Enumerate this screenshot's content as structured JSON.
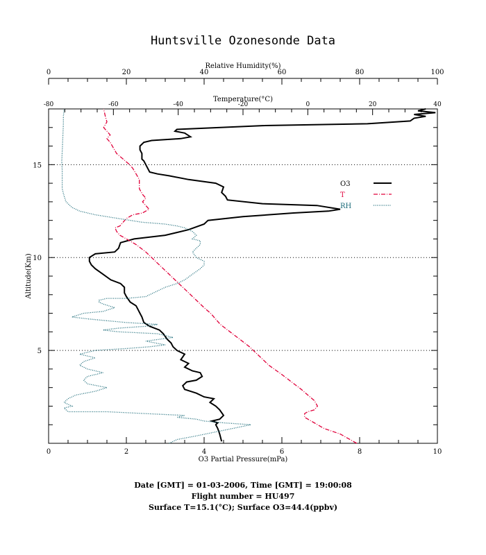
{
  "chart_data": {
    "type": "line",
    "title": "Huntsville Ozonesonde Data",
    "xlabel_bottom": "O3 Partial Pressure(mPa)",
    "xlabel_top_outer": "Relative Humidity(%)",
    "xlabel_top_inner": "Temperature(°C)",
    "ylabel": "Altitude(Km)",
    "xlim_ozone": [
      0,
      10
    ],
    "xlim_rh": [
      0,
      100
    ],
    "xlim_temp": [
      -80,
      40
    ],
    "ylim": [
      0,
      18
    ],
    "ozone_ticks": [
      "0",
      "2",
      "4",
      "6",
      "8",
      "10"
    ],
    "rh_ticks": [
      "0",
      "20",
      "40",
      "60",
      "80",
      "100"
    ],
    "temp_ticks": [
      "-80",
      "-60",
      "-40",
      "-20",
      "0",
      "20",
      "40"
    ],
    "alt_ticks": [
      "5",
      "10",
      "15"
    ],
    "dotted_grid_altitudes": [
      5,
      10,
      15
    ],
    "legend_position": "right",
    "series": [
      {
        "name": "O3",
        "axis": "ozone",
        "color": "#000000",
        "style": "solid",
        "points": [
          [
            4.45,
            0.1
          ],
          [
            4.4,
            0.5
          ],
          [
            4.35,
            0.8
          ],
          [
            4.3,
            1.0
          ],
          [
            4.35,
            1.1
          ],
          [
            4.2,
            1.2
          ],
          [
            4.4,
            1.3
          ],
          [
            4.5,
            1.5
          ],
          [
            4.4,
            1.8
          ],
          [
            4.3,
            2.0
          ],
          [
            4.15,
            2.2
          ],
          [
            4.25,
            2.4
          ],
          [
            4.0,
            2.5
          ],
          [
            3.8,
            2.7
          ],
          [
            3.5,
            2.9
          ],
          [
            3.45,
            3.1
          ],
          [
            3.5,
            3.2
          ],
          [
            3.55,
            3.3
          ],
          [
            3.8,
            3.4
          ],
          [
            3.95,
            3.6
          ],
          [
            3.9,
            3.8
          ],
          [
            3.7,
            3.9
          ],
          [
            3.5,
            4.1
          ],
          [
            3.6,
            4.3
          ],
          [
            3.4,
            4.5
          ],
          [
            3.5,
            4.8
          ],
          [
            3.3,
            5.0
          ],
          [
            3.2,
            5.2
          ],
          [
            3.15,
            5.4
          ],
          [
            3.05,
            5.6
          ],
          [
            2.95,
            5.9
          ],
          [
            2.85,
            6.1
          ],
          [
            2.6,
            6.3
          ],
          [
            2.45,
            6.5
          ],
          [
            2.4,
            6.8
          ],
          [
            2.35,
            7.0
          ],
          [
            2.3,
            7.2
          ],
          [
            2.25,
            7.4
          ],
          [
            2.1,
            7.6
          ],
          [
            2.0,
            7.9
          ],
          [
            1.95,
            8.1
          ],
          [
            1.95,
            8.4
          ],
          [
            1.85,
            8.6
          ],
          [
            1.6,
            8.8
          ],
          [
            1.4,
            9.1
          ],
          [
            1.2,
            9.4
          ],
          [
            1.1,
            9.6
          ],
          [
            1.05,
            9.8
          ],
          [
            1.05,
            10.0
          ],
          [
            1.2,
            10.2
          ],
          [
            1.7,
            10.3
          ],
          [
            1.8,
            10.5
          ],
          [
            1.85,
            10.8
          ],
          [
            2.2,
            11.0
          ],
          [
            3.0,
            11.2
          ],
          [
            3.6,
            11.5
          ],
          [
            4.0,
            11.8
          ],
          [
            4.1,
            12.0
          ],
          [
            5.0,
            12.2
          ],
          [
            6.3,
            12.4
          ],
          [
            7.2,
            12.5
          ],
          [
            7.5,
            12.6
          ],
          [
            6.9,
            12.8
          ],
          [
            5.5,
            12.9
          ],
          [
            4.6,
            13.1
          ],
          [
            4.55,
            13.3
          ],
          [
            4.45,
            13.5
          ],
          [
            4.5,
            13.8
          ],
          [
            4.3,
            14.0
          ],
          [
            3.6,
            14.2
          ],
          [
            3.1,
            14.4
          ],
          [
            2.8,
            14.5
          ],
          [
            2.6,
            14.6
          ],
          [
            2.55,
            14.8
          ],
          [
            2.5,
            15.0
          ],
          [
            2.45,
            15.2
          ],
          [
            2.4,
            15.3
          ],
          [
            2.4,
            15.6
          ],
          [
            2.35,
            15.8
          ],
          [
            2.35,
            16.0
          ],
          [
            2.45,
            16.2
          ],
          [
            2.65,
            16.3
          ],
          [
            3.4,
            16.4
          ],
          [
            3.65,
            16.5
          ],
          [
            3.5,
            16.7
          ],
          [
            3.25,
            16.8
          ],
          [
            3.3,
            16.9
          ],
          [
            5.5,
            17.1
          ],
          [
            8.2,
            17.2
          ],
          [
            9.3,
            17.35
          ],
          [
            9.4,
            17.5
          ],
          [
            9.7,
            17.6
          ],
          [
            9.4,
            17.7
          ],
          [
            9.95,
            17.8
          ],
          [
            9.5,
            17.9
          ],
          [
            9.7,
            18.0
          ]
        ]
      },
      {
        "name": "T",
        "axis": "temp",
        "color": "#e0003a",
        "style": "dashdot",
        "points": [
          [
            15.1,
            0.0
          ],
          [
            10,
            0.5
          ],
          [
            5,
            0.8
          ],
          [
            2,
            1.1
          ],
          [
            -1,
            1.4
          ],
          [
            -1,
            1.6
          ],
          [
            0,
            1.7
          ],
          [
            2,
            1.8
          ],
          [
            3,
            2.0
          ],
          [
            2,
            2.3
          ],
          [
            0,
            2.6
          ],
          [
            -2,
            2.9
          ],
          [
            -5,
            3.3
          ],
          [
            -8,
            3.7
          ],
          [
            -12,
            4.2
          ],
          [
            -15,
            4.7
          ],
          [
            -18,
            5.2
          ],
          [
            -21,
            5.6
          ],
          [
            -24,
            6.0
          ],
          [
            -27,
            6.4
          ],
          [
            -29,
            6.8
          ],
          [
            -29.5,
            6.9
          ],
          [
            -30,
            7.0
          ],
          [
            -32,
            7.3
          ],
          [
            -35,
            7.8
          ],
          [
            -38,
            8.3
          ],
          [
            -41,
            8.8
          ],
          [
            -44,
            9.3
          ],
          [
            -47,
            9.8
          ],
          [
            -50,
            10.3
          ],
          [
            -53,
            10.7
          ],
          [
            -56,
            11.0
          ],
          [
            -58,
            11.2
          ],
          [
            -59,
            11.4
          ],
          [
            -59.5,
            11.6
          ],
          [
            -58,
            11.7
          ],
          [
            -57,
            11.9
          ],
          [
            -56,
            12.1
          ],
          [
            -54,
            12.3
          ],
          [
            -51,
            12.4
          ],
          [
            -49,
            12.6
          ],
          [
            -50,
            12.8
          ],
          [
            -51,
            13.0
          ],
          [
            -50,
            13.2
          ],
          [
            -51,
            13.4
          ],
          [
            -52,
            13.7
          ],
          [
            -52,
            14.0
          ],
          [
            -52,
            14.2
          ],
          [
            -53,
            14.5
          ],
          [
            -54,
            14.8
          ],
          [
            -55,
            15.0
          ],
          [
            -57,
            15.3
          ],
          [
            -59,
            15.6
          ],
          [
            -60,
            15.9
          ],
          [
            -61,
            16.2
          ],
          [
            -62,
            16.4
          ],
          [
            -61,
            16.6
          ],
          [
            -62,
            16.8
          ],
          [
            -63,
            17.0
          ],
          [
            -62,
            17.3
          ],
          [
            -62.5,
            17.6
          ],
          [
            -63,
            18.0
          ]
        ]
      },
      {
        "name": "RH",
        "axis": "rh",
        "color": "#1a6a78",
        "style": "dotted",
        "points": [
          [
            31,
            0.0
          ],
          [
            33,
            0.2
          ],
          [
            38,
            0.4
          ],
          [
            45,
            0.7
          ],
          [
            52,
            1.0
          ],
          [
            45,
            1.1
          ],
          [
            40,
            1.2
          ],
          [
            38,
            1.3
          ],
          [
            33,
            1.4
          ],
          [
            35,
            1.5
          ],
          [
            25,
            1.6
          ],
          [
            15,
            1.7
          ],
          [
            5,
            1.7
          ],
          [
            4,
            1.9
          ],
          [
            6,
            2.0
          ],
          [
            4,
            2.2
          ],
          [
            5,
            2.4
          ],
          [
            7,
            2.6
          ],
          [
            12,
            2.8
          ],
          [
            15,
            3.0
          ],
          [
            10,
            3.2
          ],
          [
            9,
            3.4
          ],
          [
            10,
            3.6
          ],
          [
            14,
            3.8
          ],
          [
            10,
            4.0
          ],
          [
            8,
            4.2
          ],
          [
            9,
            4.4
          ],
          [
            12,
            4.6
          ],
          [
            8,
            4.8
          ],
          [
            12,
            5.0
          ],
          [
            20,
            5.1
          ],
          [
            26,
            5.2
          ],
          [
            30,
            5.3
          ],
          [
            25,
            5.5
          ],
          [
            32,
            5.7
          ],
          [
            28,
            5.9
          ],
          [
            18,
            6.0
          ],
          [
            14,
            6.1
          ],
          [
            18,
            6.2
          ],
          [
            25,
            6.3
          ],
          [
            28,
            6.4
          ],
          [
            20,
            6.5
          ],
          [
            15,
            6.6
          ],
          [
            10,
            6.7
          ],
          [
            6,
            6.8
          ],
          [
            9,
            7.0
          ],
          [
            14,
            7.1
          ],
          [
            17,
            7.3
          ],
          [
            14,
            7.5
          ],
          [
            13,
            7.6
          ],
          [
            13,
            7.7
          ],
          [
            15,
            7.8
          ],
          [
            20,
            7.8
          ],
          [
            25,
            7.9
          ],
          [
            27,
            8.1
          ],
          [
            30,
            8.4
          ],
          [
            33,
            8.6
          ],
          [
            35,
            8.8
          ],
          [
            37,
            9.1
          ],
          [
            39,
            9.4
          ],
          [
            40,
            9.6
          ],
          [
            40,
            9.8
          ],
          [
            38,
            10.0
          ],
          [
            37,
            10.3
          ],
          [
            38,
            10.5
          ],
          [
            39,
            10.7
          ],
          [
            39,
            10.9
          ],
          [
            37,
            11.0
          ],
          [
            38,
            11.2
          ],
          [
            37,
            11.4
          ],
          [
            35,
            11.6
          ],
          [
            33,
            11.7
          ],
          [
            30,
            11.8
          ],
          [
            24,
            11.9
          ],
          [
            18,
            12.1
          ],
          [
            12,
            12.3
          ],
          [
            8,
            12.5
          ],
          [
            6,
            12.7
          ],
          [
            4.5,
            13.0
          ],
          [
            4,
            13.3
          ],
          [
            3.5,
            13.7
          ],
          [
            3.5,
            14.2
          ],
          [
            3.5,
            14.7
          ],
          [
            3.4,
            15.2
          ],
          [
            3.5,
            15.7
          ],
          [
            3.6,
            16.2
          ],
          [
            3.7,
            16.7
          ],
          [
            3.8,
            17.2
          ],
          [
            3.8,
            17.6
          ],
          [
            4.0,
            18.0
          ]
        ]
      }
    ],
    "footer": {
      "line1": "Date [GMT] = 01-03-2006,  Time [GMT] = 19:00:08",
      "line2": "Flight number = HU497",
      "line3": "Surface T=15.1(°C); Surface O3=44.4(ppbv)"
    }
  }
}
